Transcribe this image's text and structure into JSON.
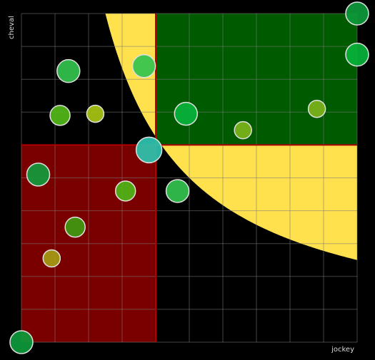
{
  "chart_data": {
    "type": "scatter",
    "title": "",
    "xlabel": "jockey",
    "ylabel": "cheval",
    "xlim": [
      0,
      10
    ],
    "ylim": [
      0,
      10
    ],
    "grid": true,
    "grid_step": 1,
    "quadrant_split": {
      "x": 4,
      "y": 6
    },
    "curve": {
      "type": "hyperbola",
      "k": 25,
      "x_min": 0,
      "x_max": 10
    },
    "colors": {
      "background": "#000000",
      "top_right_quadrant": "#005a00",
      "bottom_left_quadrant": "#7a0000",
      "curve_region": "#ffe14d",
      "split_lines": "#b00000",
      "point_stroke": "#e0e0e0"
    },
    "points": [
      {
        "x": 0,
        "y": 0,
        "r": 16,
        "color": "#0c9a3a"
      },
      {
        "x": 10,
        "y": 10,
        "r": 16,
        "color": "#0c9a3a"
      },
      {
        "x": 10,
        "y": 8.75,
        "r": 16,
        "color": "#06b33a"
      },
      {
        "x": 1.4,
        "y": 8.25,
        "r": 16,
        "color": "#33c34d"
      },
      {
        "x": 3.65,
        "y": 8.4,
        "r": 16,
        "color": "#33c34d"
      },
      {
        "x": 1.15,
        "y": 6.9,
        "r": 14,
        "color": "#52b818"
      },
      {
        "x": 2.2,
        "y": 6.95,
        "r": 12,
        "color": "#a8c512"
      },
      {
        "x": 4.9,
        "y": 6.95,
        "r": 16,
        "color": "#06b33a"
      },
      {
        "x": 6.6,
        "y": 6.45,
        "r": 12,
        "color": "#7cb31a"
      },
      {
        "x": 8.8,
        "y": 7.1,
        "r": 12,
        "color": "#7cb31a"
      },
      {
        "x": 3.8,
        "y": 5.85,
        "r": 18,
        "color": "#2ec4b0"
      },
      {
        "x": 0.5,
        "y": 5.1,
        "r": 16,
        "color": "#129b3c"
      },
      {
        "x": 3.1,
        "y": 4.6,
        "r": 14,
        "color": "#4db516"
      },
      {
        "x": 4.65,
        "y": 4.6,
        "r": 16,
        "color": "#33c34d"
      },
      {
        "x": 1.6,
        "y": 3.5,
        "r": 14,
        "color": "#3e9a10"
      },
      {
        "x": 0.9,
        "y": 2.55,
        "r": 12,
        "color": "#a39b12"
      }
    ]
  }
}
